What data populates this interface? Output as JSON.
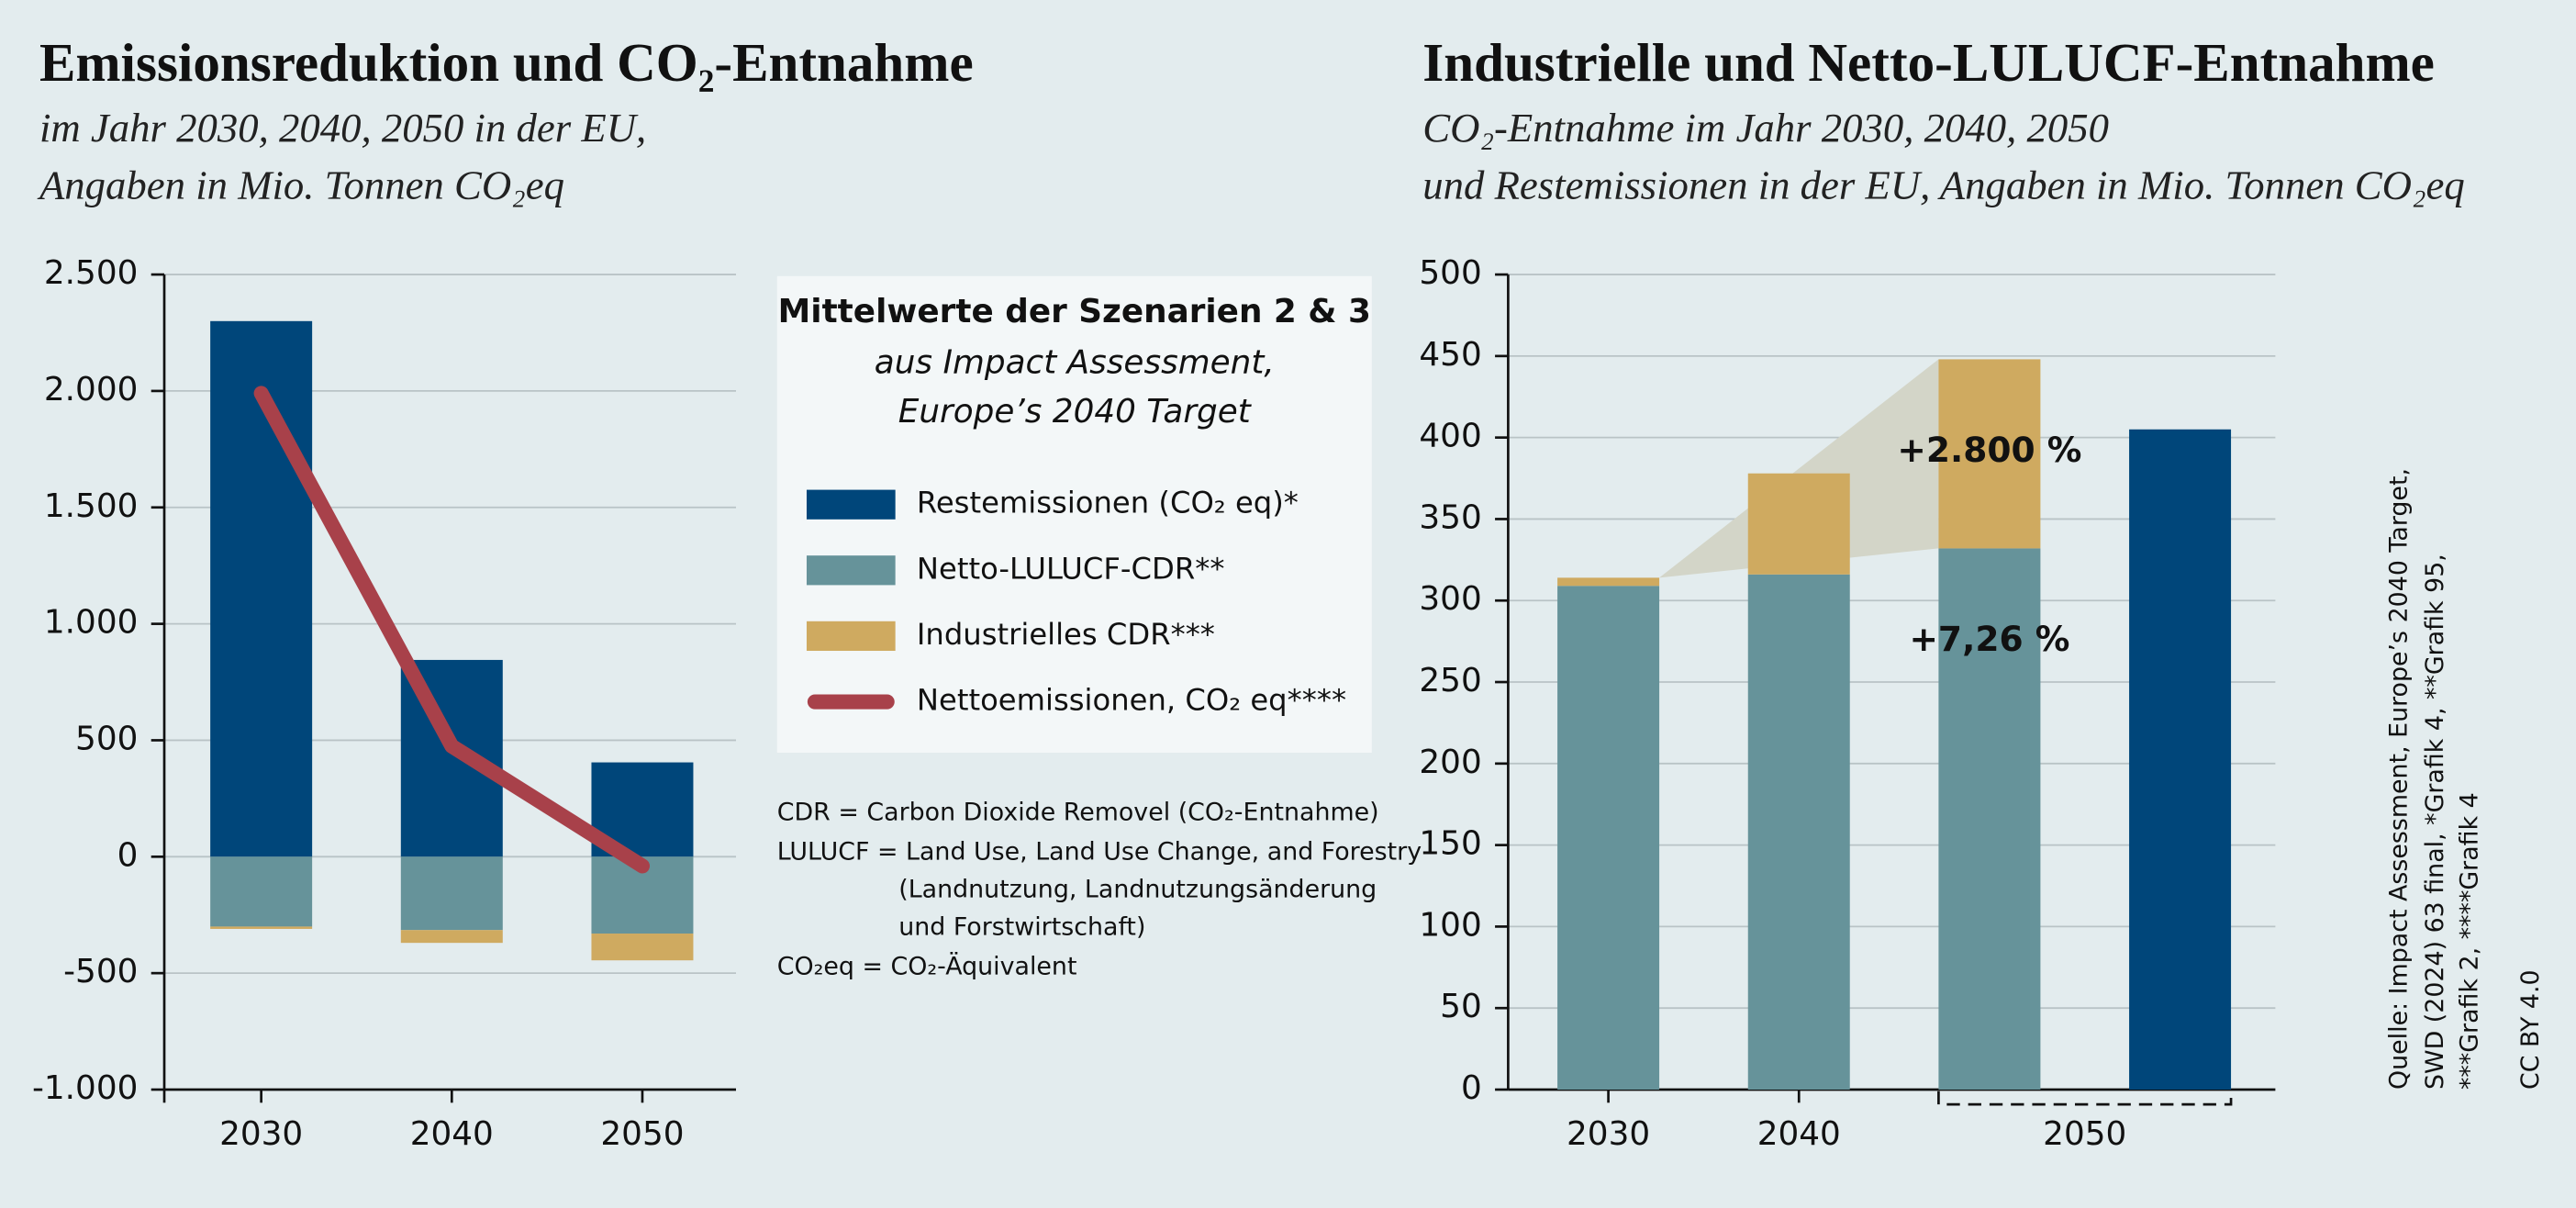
{
  "chart_data": [
    {
      "type": "bar",
      "stacked": true,
      "title": "Emissionsreduktion und CO₂-Entnahme",
      "subtitle": [
        "im Jahr 2030, 2040, 2050 in der EU,",
        "Angaben in Mio. Tonnen CO₂eq"
      ],
      "legend_title": [
        "Mittelwerte der Szenarien 2 & 3",
        "aus Impact Assessment,",
        "Europe’s 2040 Target"
      ],
      "categories": [
        "2030",
        "2040",
        "2050"
      ],
      "series": [
        {
          "name": "Restemissionen (CO₂ eq)*",
          "color": "#00467a",
          "values": [
            2300,
            845,
            405
          ]
        },
        {
          "name": "Netto-LULUCF-CDR**",
          "color": "#66939a",
          "values": [
            -300,
            -315,
            -330
          ]
        },
        {
          "name": "Industrielles CDR***",
          "color": "#cfaa60",
          "values": [
            -10,
            -55,
            -115
          ]
        },
        {
          "name": "Nettoemissionen, CO₂ eq****",
          "color": "#a8414a",
          "type": "line",
          "values": [
            1990,
            475,
            -40
          ]
        }
      ],
      "ylim": [
        -1000,
        2500
      ],
      "yticks": [
        {
          "value": -1000,
          "label": "-1.000"
        },
        -500,
        0,
        500,
        {
          "value": 1000,
          "label": "1.000"
        },
        {
          "value": 1500,
          "label": "1.500"
        },
        {
          "value": 2000,
          "label": "2.000"
        },
        {
          "value": 2500,
          "label": "2.500"
        }
      ],
      "grid": true
    },
    {
      "type": "bar",
      "stacked": true,
      "title": "Industrielle und Netto-LULUCF-Entnahme",
      "subtitle": [
        "CO₂-Entnahme im Jahr 2030, 2040, 2050",
        "und Restemissionen in der EU, Angaben in Mio. Tonnen CO₂eq"
      ],
      "categories": [
        "2030",
        "2040",
        "2050",
        null
      ],
      "series": [
        {
          "color": "#66939a",
          "values": [
            309,
            316,
            332,
            null
          ]
        },
        {
          "color": "#cfaa60",
          "values": [
            5,
            62,
            116,
            null
          ]
        },
        {
          "color": "#00467a",
          "values": [
            null,
            null,
            null,
            405
          ]
        }
      ],
      "annotations": [
        "+2.800 %",
        "+7,26 %"
      ],
      "ylim": [
        0,
        500
      ],
      "yticks": [
        0,
        50,
        100,
        150,
        200,
        250,
        300,
        350,
        400,
        450,
        500
      ],
      "grid": true
    }
  ],
  "notes": [
    "CDR = Carbon Dioxide Removel (CO₂-Entnahme)",
    "LULUCF = Land Use, Land Use Change, and Forestry",
    "(Landnutzung, Landnutzungsänderung",
    "und Forstwirtschaft)",
    "CO₂eq = CO₂-Äquivalent"
  ],
  "source": [
    "Quelle: Impact Assessment, Europe’s 2040 Target,",
    "SWD (2024) 63 final, *Grafik 4, **Grafik 95,",
    "***Grafik 2, ****Grafik 4",
    "CC BY 4.0"
  ]
}
